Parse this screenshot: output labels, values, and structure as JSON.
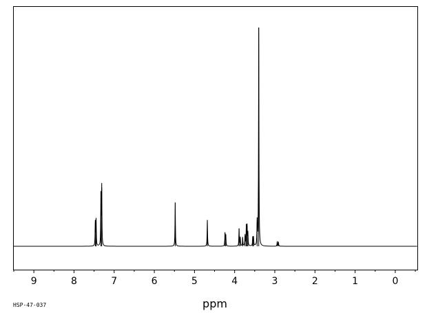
{
  "chart_data": {
    "type": "line",
    "title": "",
    "xlabel": "ppm",
    "ylabel": "",
    "xlim": [
      9.5,
      -0.55
    ],
    "ylim": [
      0,
      1
    ],
    "x_reversed": true,
    "grid": false,
    "x_ticks": [
      9,
      8,
      7,
      6,
      5,
      4,
      3,
      2,
      1,
      0
    ],
    "x_tick_labels": [
      "9",
      "8",
      "7",
      "6",
      "5",
      "4",
      "3",
      "2",
      "1",
      "0"
    ],
    "peaks": [
      {
        "ppm": 7.47,
        "height": 0.11
      },
      {
        "ppm": 7.45,
        "height": 0.12
      },
      {
        "ppm": 7.33,
        "height": 0.23
      },
      {
        "ppm": 7.31,
        "height": 0.27
      },
      {
        "ppm": 5.48,
        "height": 0.2
      },
      {
        "ppm": 4.68,
        "height": 0.12
      },
      {
        "ppm": 4.24,
        "height": 0.06
      },
      {
        "ppm": 4.22,
        "height": 0.05
      },
      {
        "ppm": 3.89,
        "height": 0.08
      },
      {
        "ppm": 3.86,
        "height": 0.04
      },
      {
        "ppm": 3.8,
        "height": 0.04
      },
      {
        "ppm": 3.74,
        "height": 0.05
      },
      {
        "ppm": 3.71,
        "height": 0.09
      },
      {
        "ppm": 3.69,
        "height": 0.09
      },
      {
        "ppm": 3.67,
        "height": 0.06
      },
      {
        "ppm": 3.55,
        "height": 0.04
      },
      {
        "ppm": 3.53,
        "height": 0.04
      },
      {
        "ppm": 3.44,
        "height": 0.11
      },
      {
        "ppm": 3.4,
        "height": 1.0
      },
      {
        "ppm": 2.94,
        "height": 0.02
      },
      {
        "ppm": 2.91,
        "height": 0.02
      }
    ],
    "annotations": [
      "HSP-47-037"
    ]
  },
  "labels": {
    "xlabel": "ppm",
    "sample_code": "HSP-47-037"
  },
  "colors": {
    "line": "#000000",
    "background": "#ffffff"
  }
}
